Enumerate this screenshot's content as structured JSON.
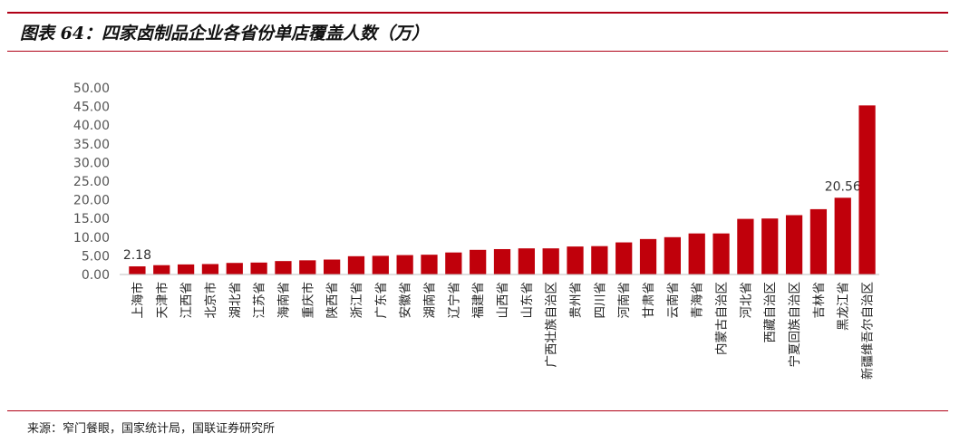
{
  "figure_title": "图表 64：四家卤制品企业各省份单店覆盖人数（万）",
  "source_note": "来源：窄门餐眼，国家统计局，国联证券研究所",
  "colors": {
    "bar": "#c0000b",
    "rule": "#b00016",
    "axis_text": "#555555"
  },
  "chart_data": {
    "type": "bar",
    "title": "四家卤制品企业各省份单店覆盖人数（万）",
    "xlabel": "",
    "ylabel": "",
    "ylim": [
      0,
      50
    ],
    "yticks": [
      "0.00",
      "5.00",
      "10.00",
      "15.00",
      "20.00",
      "25.00",
      "30.00",
      "35.00",
      "40.00",
      "45.00",
      "50.00"
    ],
    "grid": false,
    "legend": "none",
    "categories": [
      "上海市",
      "天津市",
      "江西省",
      "北京市",
      "湖北省",
      "江苏省",
      "海南省",
      "重庆市",
      "陕西省",
      "浙江省",
      "广东省",
      "安徽省",
      "湖南省",
      "辽宁省",
      "福建省",
      "山西省",
      "山东省",
      "广西壮族自治区",
      "贵州省",
      "四川省",
      "河南省",
      "甘肃省",
      "云南省",
      "青海省",
      "内蒙古自治区",
      "河北省",
      "西藏自治区",
      "宁夏回族自治区",
      "吉林省",
      "黑龙江省",
      "新疆维吾尔自治区"
    ],
    "values": [
      2.18,
      2.5,
      2.7,
      2.8,
      3.1,
      3.2,
      3.6,
      3.8,
      4.0,
      4.9,
      5.0,
      5.2,
      5.3,
      5.9,
      6.6,
      6.8,
      7.0,
      7.0,
      7.5,
      7.6,
      8.6,
      9.5,
      10.0,
      11.0,
      11.0,
      14.9,
      15.0,
      15.9,
      17.5,
      20.56,
      45.3
    ],
    "data_labels": [
      {
        "category": "上海市",
        "text": "2.18"
      },
      {
        "category": "黑龙江省",
        "text": "20.56"
      }
    ]
  }
}
